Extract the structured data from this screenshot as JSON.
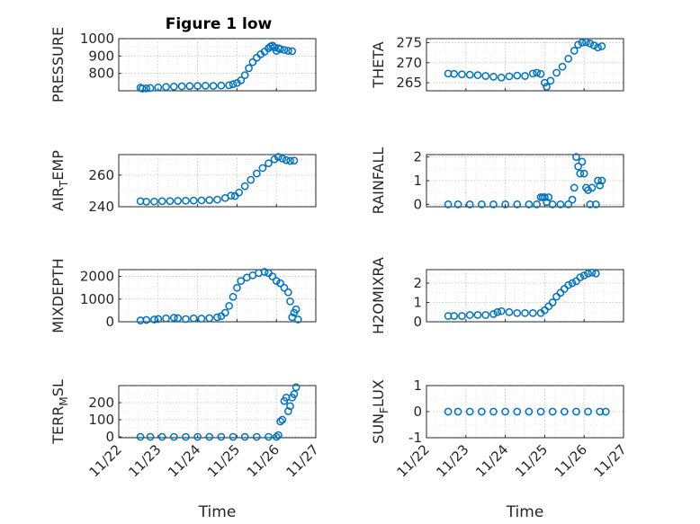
{
  "figure_title": "Figure 1 low",
  "chart_data": [
    {
      "type": "scatter",
      "id": "pressure",
      "title": "Figure 1 low",
      "ylabel": "PRESSURE",
      "xlabel": "",
      "ylim": [
        700,
        1000
      ],
      "yticks": [
        800,
        900,
        1000
      ],
      "xlim": [
        "11/22",
        "11/27"
      ],
      "grid": true,
      "series": [
        {
          "points": [
            [
              0.55,
              718
            ],
            [
              0.6,
              713
            ],
            [
              0.7,
              714
            ],
            [
              0.8,
              716
            ],
            [
              1.0,
              719
            ],
            [
              1.2,
              722
            ],
            [
              1.4,
              724
            ],
            [
              1.6,
              726
            ],
            [
              1.8,
              727
            ],
            [
              2.0,
              728
            ],
            [
              2.2,
              729
            ],
            [
              2.4,
              728
            ],
            [
              2.6,
              730
            ],
            [
              2.8,
              732
            ],
            [
              2.9,
              738
            ],
            [
              3.0,
              745
            ],
            [
              3.1,
              760
            ],
            [
              3.2,
              790
            ],
            [
              3.3,
              830
            ],
            [
              3.4,
              865
            ],
            [
              3.5,
              890
            ],
            [
              3.6,
              910
            ],
            [
              3.7,
              925
            ],
            [
              3.8,
              945
            ],
            [
              3.85,
              955
            ],
            [
              3.9,
              960
            ],
            [
              3.95,
              950
            ],
            [
              4.0,
              930
            ],
            [
              4.05,
              945
            ],
            [
              4.1,
              940
            ],
            [
              4.2,
              935
            ],
            [
              4.3,
              930
            ],
            [
              4.4,
              928
            ]
          ]
        }
      ]
    },
    {
      "type": "scatter",
      "id": "theta",
      "title": "",
      "ylabel": "THETA",
      "xlabel": "",
      "ylim": [
        263,
        276
      ],
      "yticks": [
        265,
        270,
        275
      ],
      "xlim": [
        "11/22",
        "11/27"
      ],
      "grid": true,
      "series": [
        {
          "points": [
            [
              0.55,
              267.3
            ],
            [
              0.7,
              267.2
            ],
            [
              0.9,
              267.1
            ],
            [
              1.1,
              267.0
            ],
            [
              1.3,
              266.9
            ],
            [
              1.5,
              266.7
            ],
            [
              1.7,
              266.5
            ],
            [
              1.9,
              266.3
            ],
            [
              2.1,
              266.6
            ],
            [
              2.3,
              266.8
            ],
            [
              2.5,
              266.7
            ],
            [
              2.7,
              267.3
            ],
            [
              2.8,
              267.5
            ],
            [
              2.9,
              267.2
            ],
            [
              3.0,
              265.0
            ],
            [
              3.05,
              264.0
            ],
            [
              3.15,
              265.5
            ],
            [
              3.3,
              267.5
            ],
            [
              3.45,
              269.0
            ],
            [
              3.6,
              271.0
            ],
            [
              3.75,
              273.0
            ],
            [
              3.85,
              274.5
            ],
            [
              3.95,
              275.0
            ],
            [
              4.05,
              275.1
            ],
            [
              4.15,
              274.8
            ],
            [
              4.25,
              274.3
            ],
            [
              4.35,
              273.8
            ],
            [
              4.45,
              274.1
            ]
          ]
        }
      ]
    },
    {
      "type": "scatter",
      "id": "air_temp",
      "title": "",
      "ylabel": "AIR_TEMP",
      "xlabel": "",
      "ylim": [
        240,
        273
      ],
      "yticks": [
        240,
        260
      ],
      "xlim": [
        "11/22",
        "11/27"
      ],
      "grid": true,
      "series": [
        {
          "points": [
            [
              0.55,
              243.5
            ],
            [
              0.7,
              243.2
            ],
            [
              0.9,
              243.3
            ],
            [
              1.1,
              243.5
            ],
            [
              1.3,
              243.6
            ],
            [
              1.5,
              243.7
            ],
            [
              1.7,
              243.8
            ],
            [
              1.9,
              243.9
            ],
            [
              2.1,
              244.0
            ],
            [
              2.3,
              244.2
            ],
            [
              2.5,
              244.5
            ],
            [
              2.7,
              245.5
            ],
            [
              2.85,
              247.0
            ],
            [
              2.95,
              246.8
            ],
            [
              3.05,
              249.0
            ],
            [
              3.2,
              253.0
            ],
            [
              3.35,
              257.0
            ],
            [
              3.5,
              261.0
            ],
            [
              3.65,
              264.5
            ],
            [
              3.8,
              267.5
            ],
            [
              3.95,
              270.0
            ],
            [
              4.05,
              271.5
            ],
            [
              4.15,
              270.5
            ],
            [
              4.25,
              269.5
            ],
            [
              4.35,
              269.0
            ],
            [
              4.45,
              269.2
            ]
          ]
        }
      ]
    },
    {
      "type": "scatter",
      "id": "rainfall",
      "title": "",
      "ylabel": "RAINFALL",
      "xlabel": "",
      "ylim": [
        -0.1,
        2.1
      ],
      "yticks": [
        0,
        1,
        2
      ],
      "xlim": [
        "11/22",
        "11/27"
      ],
      "grid": true,
      "series": [
        {
          "points": [
            [
              0.55,
              0
            ],
            [
              0.8,
              0
            ],
            [
              1.1,
              0
            ],
            [
              1.4,
              0
            ],
            [
              1.7,
              0
            ],
            [
              2.0,
              0
            ],
            [
              2.3,
              0
            ],
            [
              2.6,
              0
            ],
            [
              2.8,
              0
            ],
            [
              2.9,
              0.3
            ],
            [
              2.95,
              0.3
            ],
            [
              3.0,
              0.3
            ],
            [
              3.05,
              0.1
            ],
            [
              3.1,
              0.3
            ],
            [
              3.2,
              0
            ],
            [
              3.4,
              0
            ],
            [
              3.6,
              0
            ],
            [
              3.7,
              0.2
            ],
            [
              3.75,
              0.7
            ],
            [
              3.8,
              2.0
            ],
            [
              3.85,
              1.6
            ],
            [
              3.9,
              1.3
            ],
            [
              3.95,
              1.8
            ],
            [
              4.0,
              1.3
            ],
            [
              4.05,
              0.7
            ],
            [
              4.1,
              0.6
            ],
            [
              4.15,
              0
            ],
            [
              4.2,
              0.7
            ],
            [
              4.3,
              0
            ],
            [
              4.35,
              1.0
            ],
            [
              4.4,
              0.8
            ],
            [
              4.45,
              1.0
            ]
          ]
        }
      ]
    },
    {
      "type": "scatter",
      "id": "mixdepth",
      "title": "",
      "ylabel": "MIXDEPTH",
      "xlabel": "",
      "ylim": [
        0,
        2300
      ],
      "yticks": [
        0,
        1000,
        2000
      ],
      "xlim": [
        "11/22",
        "11/27"
      ],
      "grid": true,
      "series": [
        {
          "points": [
            [
              0.55,
              60
            ],
            [
              0.7,
              80
            ],
            [
              0.9,
              100
            ],
            [
              1.0,
              120
            ],
            [
              1.2,
              150
            ],
            [
              1.4,
              180
            ],
            [
              1.5,
              160
            ],
            [
              1.7,
              120
            ],
            [
              1.9,
              150
            ],
            [
              2.1,
              140
            ],
            [
              2.3,
              160
            ],
            [
              2.5,
              200
            ],
            [
              2.6,
              250
            ],
            [
              2.7,
              400
            ],
            [
              2.8,
              700
            ],
            [
              2.9,
              1100
            ],
            [
              3.0,
              1500
            ],
            [
              3.1,
              1800
            ],
            [
              3.25,
              1950
            ],
            [
              3.4,
              2050
            ],
            [
              3.55,
              2150
            ],
            [
              3.7,
              2200
            ],
            [
              3.8,
              2150
            ],
            [
              3.9,
              2000
            ],
            [
              4.0,
              1800
            ],
            [
              4.1,
              1700
            ],
            [
              4.2,
              1500
            ],
            [
              4.3,
              1300
            ],
            [
              4.35,
              900
            ],
            [
              4.4,
              200
            ],
            [
              4.45,
              400
            ],
            [
              4.5,
              550
            ],
            [
              4.55,
              100
            ]
          ]
        }
      ]
    },
    {
      "type": "scatter",
      "id": "h2omixra",
      "title": "",
      "ylabel": "H2OMIXRA",
      "xlabel": "",
      "ylim": [
        0,
        2.7
      ],
      "yticks": [
        0,
        1,
        2
      ],
      "xlim": [
        "11/22",
        "11/27"
      ],
      "grid": true,
      "series": [
        {
          "points": [
            [
              0.55,
              0.3
            ],
            [
              0.7,
              0.3
            ],
            [
              0.9,
              0.3
            ],
            [
              1.1,
              0.35
            ],
            [
              1.3,
              0.35
            ],
            [
              1.5,
              0.35
            ],
            [
              1.7,
              0.4
            ],
            [
              1.8,
              0.5
            ],
            [
              1.9,
              0.55
            ],
            [
              2.1,
              0.5
            ],
            [
              2.3,
              0.45
            ],
            [
              2.5,
              0.45
            ],
            [
              2.7,
              0.45
            ],
            [
              2.9,
              0.45
            ],
            [
              3.0,
              0.6
            ],
            [
              3.1,
              0.8
            ],
            [
              3.2,
              1.0
            ],
            [
              3.3,
              1.3
            ],
            [
              3.4,
              1.5
            ],
            [
              3.5,
              1.7
            ],
            [
              3.6,
              1.9
            ],
            [
              3.7,
              2.0
            ],
            [
              3.8,
              2.1
            ],
            [
              3.9,
              2.3
            ],
            [
              4.0,
              2.4
            ],
            [
              4.1,
              2.5
            ],
            [
              4.2,
              2.55
            ],
            [
              4.3,
              2.5
            ]
          ]
        }
      ]
    },
    {
      "type": "scatter",
      "id": "terr_msl",
      "title": "",
      "ylabel": "TERR_MSL",
      "xlabel": "Time",
      "ylim": [
        -5,
        300
      ],
      "yticks": [
        0,
        100,
        200
      ],
      "xlim": [
        "11/22",
        "11/27"
      ],
      "xticks": [
        "11/22",
        "11/23",
        "11/24",
        "11/25",
        "11/26",
        "11/27"
      ],
      "grid": true,
      "series": [
        {
          "points": [
            [
              0.55,
              0
            ],
            [
              0.8,
              0
            ],
            [
              1.1,
              0
            ],
            [
              1.4,
              0
            ],
            [
              1.7,
              0
            ],
            [
              2.0,
              0
            ],
            [
              2.3,
              0
            ],
            [
              2.6,
              0
            ],
            [
              2.9,
              0
            ],
            [
              3.2,
              0
            ],
            [
              3.5,
              0
            ],
            [
              3.8,
              0
            ],
            [
              4.0,
              0
            ],
            [
              4.05,
              10
            ],
            [
              4.1,
              90
            ],
            [
              4.15,
              100
            ],
            [
              4.2,
              210
            ],
            [
              4.25,
              230
            ],
            [
              4.3,
              150
            ],
            [
              4.35,
              180
            ],
            [
              4.4,
              230
            ],
            [
              4.45,
              250
            ],
            [
              4.5,
              290
            ]
          ]
        }
      ]
    },
    {
      "type": "scatter",
      "id": "sun_flux",
      "title": "",
      "ylabel": "SUN_FLUX",
      "xlabel": "Time",
      "ylim": [
        -1,
        1
      ],
      "yticks": [
        -1,
        0,
        1
      ],
      "xlim": [
        "11/22",
        "11/27"
      ],
      "xticks": [
        "11/22",
        "11/23",
        "11/24",
        "11/25",
        "11/26",
        "11/27"
      ],
      "grid": true,
      "series": [
        {
          "points": [
            [
              0.55,
              0
            ],
            [
              0.8,
              0
            ],
            [
              1.1,
              0
            ],
            [
              1.4,
              0
            ],
            [
              1.7,
              0
            ],
            [
              2.0,
              0
            ],
            [
              2.3,
              0
            ],
            [
              2.6,
              0
            ],
            [
              2.9,
              0
            ],
            [
              3.2,
              0
            ],
            [
              3.5,
              0
            ],
            [
              3.8,
              0
            ],
            [
              4.1,
              0
            ],
            [
              4.4,
              0
            ],
            [
              4.55,
              0
            ]
          ]
        }
      ]
    }
  ]
}
